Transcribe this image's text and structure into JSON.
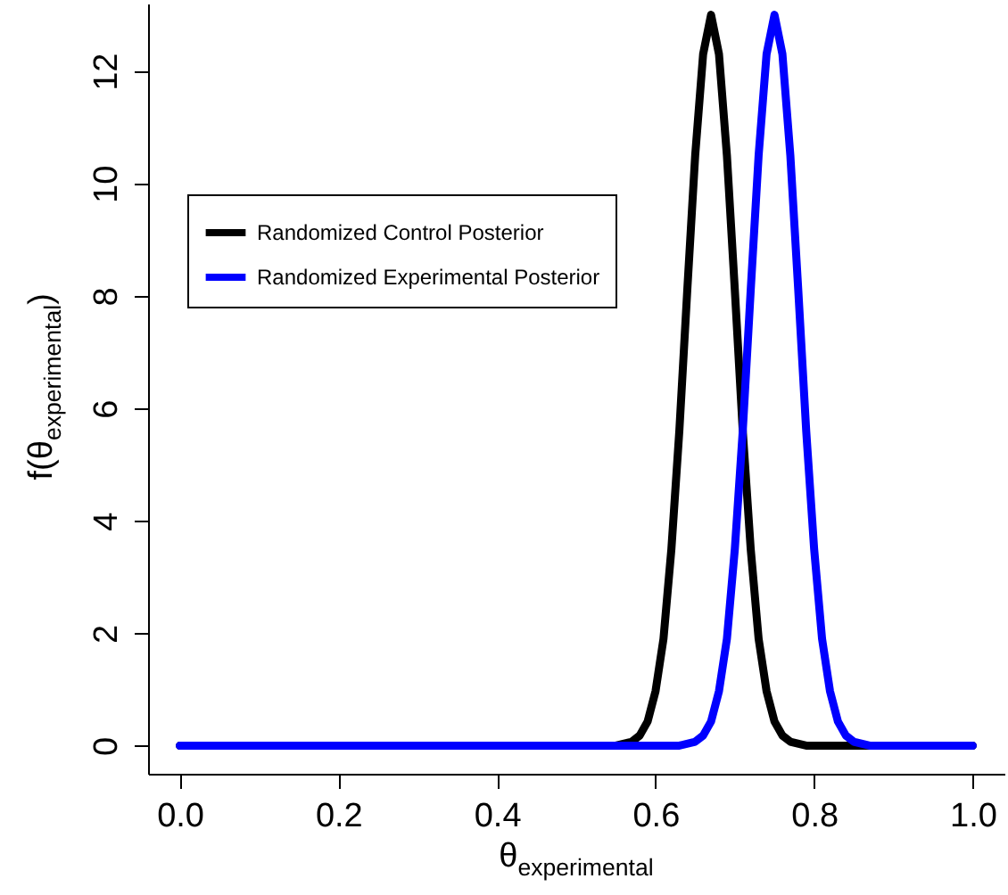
{
  "chart_data": {
    "type": "line",
    "xlabel": "θ$_{experimental}$",
    "ylabel": "f(θ$_{experimental}$)",
    "xlim": [
      -0.04,
      1.04
    ],
    "ylim": [
      -0.5,
      13.2
    ],
    "xticks": [
      {
        "value": 0,
        "label": "0.0"
      },
      {
        "value": 0.2,
        "label": "0.2"
      },
      {
        "value": 0.4,
        "label": "0.4"
      },
      {
        "value": 0.6,
        "label": "0.6"
      },
      {
        "value": 0.8,
        "label": "0.8"
      },
      {
        "value": 1,
        "label": "1.0"
      }
    ],
    "yticks": [
      0,
      2,
      4,
      6,
      8,
      10,
      12
    ],
    "legend": "top left",
    "line_style": "solid",
    "series": [
      {
        "name": "Randomized Control Posterior",
        "color": "#000000",
        "x": [
          0,
          0.55,
          0.57,
          0.58,
          0.59,
          0.6,
          0.61,
          0.62,
          0.63,
          0.64,
          0.65,
          0.66,
          0.67,
          0.68,
          0.69,
          0.7,
          0.71,
          0.72,
          0.73,
          0.74,
          0.75,
          0.76,
          0.77,
          0.79,
          1
        ],
        "values": [
          0,
          0,
          0.07,
          0.18,
          0.43,
          0.97,
          1.9,
          3.5,
          5.6,
          8.1,
          10.5,
          12.3,
          13,
          12.3,
          10.5,
          8.1,
          5.6,
          3.5,
          1.9,
          0.97,
          0.43,
          0.18,
          0.07,
          0,
          0
        ]
      },
      {
        "name": "Randomized Experimental Posterior",
        "color": "#0000ff",
        "x": [
          0,
          0.63,
          0.65,
          0.66,
          0.67,
          0.68,
          0.69,
          0.7,
          0.71,
          0.72,
          0.73,
          0.74,
          0.75,
          0.76,
          0.77,
          0.78,
          0.79,
          0.8,
          0.81,
          0.82,
          0.83,
          0.84,
          0.85,
          0.87,
          1
        ],
        "values": [
          0,
          0,
          0.07,
          0.18,
          0.43,
          0.97,
          1.9,
          3.5,
          5.6,
          8.1,
          10.5,
          12.3,
          13,
          12.3,
          10.5,
          8.1,
          5.6,
          3.5,
          1.9,
          0.97,
          0.43,
          0.18,
          0.07,
          0,
          0
        ]
      }
    ]
  }
}
